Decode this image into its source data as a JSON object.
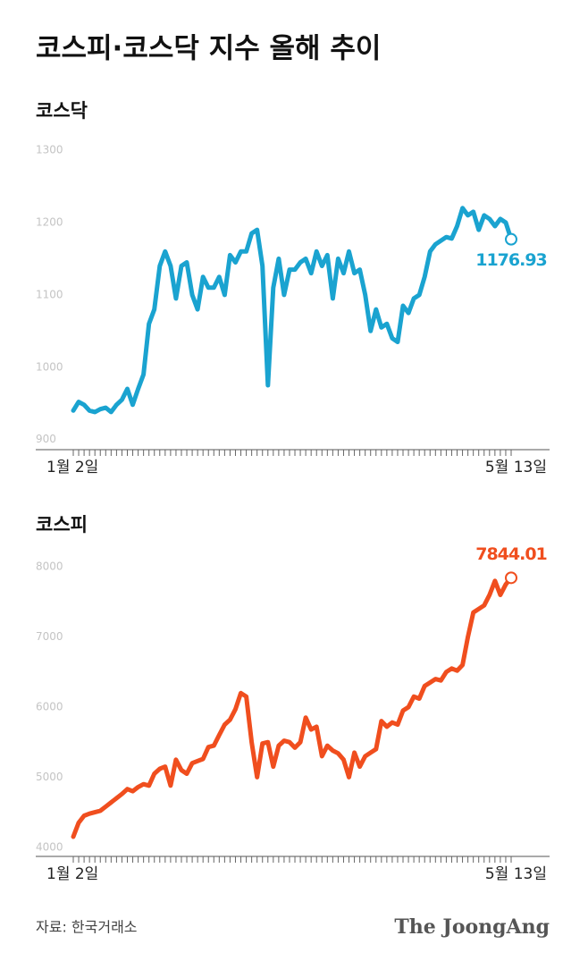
{
  "title": "코스피·코스닥 지수 올해 추이",
  "source": "자료: 한국거래소",
  "brand": "The JoongAng",
  "chart_data": [
    {
      "type": "line",
      "title": "코스닥",
      "color": "#1aa3d0",
      "ylim": [
        886,
        1310
      ],
      "yticks": [
        900,
        1000,
        1100,
        1200,
        1300
      ],
      "categories": [
        "1월 2일",
        null,
        null,
        null,
        null,
        null,
        null,
        null,
        null,
        null,
        null,
        null,
        null,
        null,
        null,
        null,
        null,
        null,
        null,
        null,
        null,
        null,
        null,
        null,
        null,
        null,
        null,
        null,
        null,
        null,
        null,
        null,
        null,
        null,
        null,
        null,
        null,
        null,
        null,
        null,
        null,
        null,
        null,
        null,
        null,
        null,
        null,
        null,
        null,
        null,
        null,
        null,
        null,
        null,
        null,
        null,
        null,
        null,
        null,
        null,
        null,
        null,
        null,
        null,
        null,
        null,
        null,
        null,
        null,
        null,
        null,
        null,
        null,
        null,
        null,
        null,
        null,
        null,
        null,
        null,
        null,
        "5월 13일"
      ],
      "values": [
        940,
        952,
        948,
        940,
        938,
        942,
        944,
        938,
        948,
        955,
        970,
        948,
        970,
        990,
        1060,
        1080,
        1140,
        1160,
        1140,
        1095,
        1140,
        1145,
        1100,
        1080,
        1125,
        1110,
        1110,
        1125,
        1100,
        1155,
        1145,
        1160,
        1160,
        1185,
        1190,
        1140,
        975,
        1110,
        1150,
        1100,
        1135,
        1135,
        1145,
        1150,
        1130,
        1160,
        1140,
        1155,
        1095,
        1150,
        1130,
        1160,
        1130,
        1135,
        1100,
        1050,
        1080,
        1055,
        1060,
        1040,
        1035,
        1085,
        1075,
        1095,
        1100,
        1125,
        1160,
        1170,
        1175,
        1180,
        1178,
        1195,
        1220,
        1210,
        1215,
        1190,
        1210,
        1205,
        1195,
        1205,
        1200,
        1176.93
      ]
    },
    {
      "type": "line",
      "title": "코스피",
      "color": "#f04e1e",
      "ylim": [
        3870,
        8180
      ],
      "yticks": [
        4000,
        5000,
        6000,
        7000,
        8000
      ],
      "categories": [
        "1월 2일",
        null,
        null,
        null,
        null,
        null,
        null,
        null,
        null,
        null,
        null,
        null,
        null,
        null,
        null,
        null,
        null,
        null,
        null,
        null,
        null,
        null,
        null,
        null,
        null,
        null,
        null,
        null,
        null,
        null,
        null,
        null,
        null,
        null,
        null,
        null,
        null,
        null,
        null,
        null,
        null,
        null,
        null,
        null,
        null,
        null,
        null,
        null,
        null,
        null,
        null,
        null,
        null,
        null,
        null,
        null,
        null,
        null,
        null,
        null,
        null,
        null,
        null,
        null,
        null,
        null,
        null,
        null,
        null,
        null,
        null,
        null,
        null,
        null,
        null,
        null,
        null,
        null,
        null,
        null,
        null,
        "5월 13일"
      ],
      "values": [
        4150,
        4350,
        4450,
        4480,
        4500,
        4520,
        4580,
        4640,
        4700,
        4760,
        4830,
        4800,
        4860,
        4900,
        4880,
        5050,
        5120,
        5150,
        4880,
        5250,
        5100,
        5050,
        5200,
        5230,
        5260,
        5430,
        5450,
        5600,
        5750,
        5820,
        5970,
        6200,
        6150,
        5500,
        5000,
        5480,
        5500,
        5150,
        5450,
        5520,
        5500,
        5420,
        5500,
        5850,
        5680,
        5720,
        5300,
        5450,
        5380,
        5340,
        5250,
        5000,
        5350,
        5150,
        5300,
        5350,
        5400,
        5800,
        5720,
        5780,
        5750,
        5950,
        6000,
        6150,
        6120,
        6300,
        6350,
        6400,
        6380,
        6500,
        6550,
        6520,
        6600,
        7000,
        7350,
        7400,
        7450,
        7600,
        7800,
        7600,
        7750,
        7844.01
      ]
    }
  ]
}
